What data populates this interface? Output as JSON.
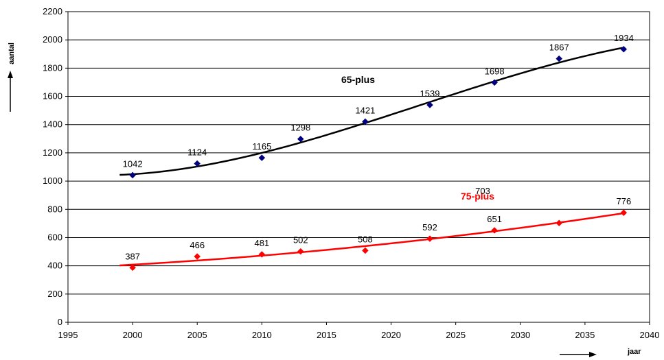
{
  "chart_data": {
    "type": "scatter",
    "xlabel": "jaar",
    "ylabel": "aantal",
    "xlim": [
      1995,
      2040
    ],
    "ylim": [
      0,
      2200
    ],
    "x_ticks": [
      1995,
      2000,
      2005,
      2010,
      2015,
      2020,
      2025,
      2030,
      2035,
      2040
    ],
    "y_ticks": [
      0,
      200,
      400,
      600,
      800,
      1000,
      1200,
      1400,
      1600,
      1800,
      2000,
      2200
    ],
    "grid": "horizontal",
    "legend": "none",
    "trendline": "smooth",
    "series": [
      {
        "name": "65-plus",
        "color": "#000080",
        "line_color": "#000000",
        "label_color": "#000000",
        "x": [
          2000,
          2005,
          2010,
          2013,
          2018,
          2023,
          2028,
          2033,
          2038
        ],
        "values": [
          1042,
          1124,
          1165,
          1298,
          1421,
          1539,
          1698,
          1867,
          1934
        ]
      },
      {
        "name": "75-plus",
        "color": "#ff0000",
        "line_color": "#ff0000",
        "label_color": "#ff0000",
        "x": [
          2000,
          2005,
          2010,
          2013,
          2018,
          2023,
          2028,
          2033,
          2038
        ],
        "values": [
          387,
          466,
          481,
          502,
          508,
          592,
          651,
          703,
          776
        ]
      }
    ],
    "annotations": [
      {
        "text": "703",
        "series": 1
      }
    ]
  }
}
